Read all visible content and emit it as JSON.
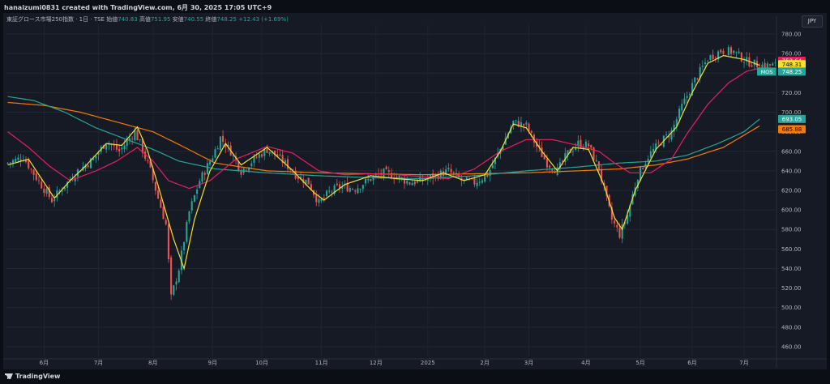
{
  "header": {
    "credit": "hanaizumi0831 created with TradingView.com, 6月 30, 2025 17:05 UTC+9"
  },
  "legend": {
    "symbol": "東証グロース市場250指数 · 1日 · TSE",
    "open_label": "始値",
    "open": "740.83",
    "high_label": "高値",
    "high": "751.95",
    "low_label": "安値",
    "low": "740.55",
    "close_label": "終値",
    "close": "748.25",
    "change": "+12.43 (+1.69%)"
  },
  "currency_button": "JPY",
  "watermark": "TradingView",
  "colors": {
    "background": "#161a25",
    "up": "#26a69a",
    "down": "#ef5350",
    "ma_yellow": "#f5e12f",
    "ma_pink": "#e91e63",
    "ma_teal": "#26a69a",
    "ma_orange": "#f57c00"
  },
  "price_tags": [
    {
      "value": "752.64",
      "bg": "#e91e63",
      "fg": "#ffffff"
    },
    {
      "value": "748.31",
      "bg": "#f5e12f",
      "fg": "#000000"
    },
    {
      "value": "748.25",
      "bg": "#26a69a",
      "fg": "#ffffff",
      "symbol": "MOS"
    },
    {
      "value": "693.05",
      "bg": "#26a69a",
      "fg": "#ffffff"
    },
    {
      "value": "685.88",
      "bg": "#f57c00",
      "fg": "#000000"
    }
  ],
  "chart_data": {
    "type": "candlestick",
    "ylim": [
      450,
      790
    ],
    "y_ticks": [
      460,
      480,
      500,
      520,
      540,
      560,
      580,
      600,
      620,
      640,
      660,
      680,
      700,
      720,
      740,
      760,
      780
    ],
    "x_labels": [
      "6月",
      "7月",
      "8月",
      "9月",
      "10月",
      "11月",
      "12月",
      "2025",
      "2月",
      "3月",
      "4月",
      "5月",
      "6月",
      "7月"
    ],
    "x_label_index": [
      14,
      35,
      56,
      79,
      98,
      121,
      142,
      162,
      184,
      201,
      223,
      244,
      264,
      284
    ],
    "x_max_index": 296,
    "anchors": [
      [
        0,
        648
      ],
      [
        6,
        654
      ],
      [
        11,
        633
      ],
      [
        17,
        610
      ],
      [
        21,
        622
      ],
      [
        27,
        640
      ],
      [
        33,
        652
      ],
      [
        38,
        670
      ],
      [
        43,
        660
      ],
      [
        49,
        680
      ],
      [
        51,
        668
      ],
      [
        55,
        640
      ],
      [
        58,
        612
      ],
      [
        61,
        585
      ],
      [
        63,
        510
      ],
      [
        66,
        540
      ],
      [
        70,
        598
      ],
      [
        74,
        630
      ],
      [
        79,
        655
      ],
      [
        82,
        674
      ],
      [
        86,
        660
      ],
      [
        90,
        640
      ],
      [
        96,
        654
      ],
      [
        100,
        662
      ],
      [
        104,
        655
      ],
      [
        108,
        645
      ],
      [
        112,
        634
      ],
      [
        116,
        628
      ],
      [
        120,
        607
      ],
      [
        124,
        618
      ],
      [
        128,
        624
      ],
      [
        134,
        622
      ],
      [
        140,
        632
      ],
      [
        145,
        638
      ],
      [
        150,
        634
      ],
      [
        155,
        628
      ],
      [
        160,
        630
      ],
      [
        166,
        636
      ],
      [
        170,
        640
      ],
      [
        175,
        630
      ],
      [
        180,
        628
      ],
      [
        185,
        636
      ],
      [
        190,
        662
      ],
      [
        195,
        690
      ],
      [
        200,
        686
      ],
      [
        204,
        665
      ],
      [
        208,
        648
      ],
      [
        212,
        640
      ],
      [
        216,
        658
      ],
      [
        220,
        668
      ],
      [
        224,
        666
      ],
      [
        228,
        642
      ],
      [
        231,
        610
      ],
      [
        233,
        590
      ],
      [
        236,
        575
      ],
      [
        239,
        595
      ],
      [
        243,
        635
      ],
      [
        247,
        655
      ],
      [
        252,
        670
      ],
      [
        256,
        680
      ],
      [
        260,
        706
      ],
      [
        265,
        733
      ],
      [
        270,
        755
      ],
      [
        275,
        763
      ],
      [
        280,
        762
      ],
      [
        285,
        752
      ],
      [
        290,
        748
      ]
    ],
    "ma_yellow": [
      [
        0,
        646
      ],
      [
        8,
        652
      ],
      [
        14,
        628
      ],
      [
        18,
        612
      ],
      [
        24,
        630
      ],
      [
        30,
        645
      ],
      [
        38,
        668
      ],
      [
        44,
        666
      ],
      [
        50,
        685
      ],
      [
        54,
        660
      ],
      [
        58,
        625
      ],
      [
        64,
        570
      ],
      [
        68,
        540
      ],
      [
        72,
        590
      ],
      [
        78,
        640
      ],
      [
        84,
        668
      ],
      [
        90,
        646
      ],
      [
        100,
        664
      ],
      [
        110,
        640
      ],
      [
        118,
        618
      ],
      [
        122,
        610
      ],
      [
        130,
        626
      ],
      [
        140,
        635
      ],
      [
        150,
        632
      ],
      [
        160,
        630
      ],
      [
        168,
        638
      ],
      [
        176,
        630
      ],
      [
        184,
        636
      ],
      [
        190,
        660
      ],
      [
        195,
        688
      ],
      [
        200,
        684
      ],
      [
        206,
        660
      ],
      [
        212,
        640
      ],
      [
        218,
        664
      ],
      [
        224,
        662
      ],
      [
        230,
        625
      ],
      [
        234,
        592
      ],
      [
        237,
        580
      ],
      [
        242,
        620
      ],
      [
        250,
        662
      ],
      [
        258,
        685
      ],
      [
        264,
        720
      ],
      [
        270,
        750
      ],
      [
        276,
        758
      ],
      [
        284,
        754
      ],
      [
        290,
        748
      ]
    ],
    "ma_pink": [
      [
        0,
        680
      ],
      [
        8,
        664
      ],
      [
        16,
        645
      ],
      [
        24,
        630
      ],
      [
        34,
        640
      ],
      [
        42,
        650
      ],
      [
        50,
        664
      ],
      [
        56,
        650
      ],
      [
        62,
        630
      ],
      [
        70,
        622
      ],
      [
        78,
        630
      ],
      [
        88,
        652
      ],
      [
        100,
        665
      ],
      [
        110,
        658
      ],
      [
        120,
        640
      ],
      [
        130,
        636
      ],
      [
        140,
        637
      ],
      [
        150,
        636
      ],
      [
        160,
        634
      ],
      [
        170,
        632
      ],
      [
        180,
        642
      ],
      [
        190,
        660
      ],
      [
        200,
        672
      ],
      [
        210,
        672
      ],
      [
        220,
        666
      ],
      [
        228,
        660
      ],
      [
        234,
        648
      ],
      [
        240,
        638
      ],
      [
        248,
        638
      ],
      [
        256,
        652
      ],
      [
        262,
        678
      ],
      [
        270,
        708
      ],
      [
        278,
        730
      ],
      [
        285,
        742
      ],
      [
        290,
        745
      ]
    ],
    "ma_teal": [
      [
        0,
        716
      ],
      [
        10,
        712
      ],
      [
        22,
        700
      ],
      [
        34,
        684
      ],
      [
        46,
        672
      ],
      [
        56,
        662
      ],
      [
        66,
        650
      ],
      [
        80,
        642
      ],
      [
        100,
        638
      ],
      [
        120,
        635
      ],
      [
        140,
        633
      ],
      [
        160,
        632
      ],
      [
        180,
        635
      ],
      [
        200,
        640
      ],
      [
        220,
        644
      ],
      [
        236,
        648
      ],
      [
        250,
        650
      ],
      [
        262,
        656
      ],
      [
        274,
        668
      ],
      [
        284,
        680
      ],
      [
        290,
        693
      ]
    ],
    "ma_orange": [
      [
        0,
        710
      ],
      [
        14,
        707
      ],
      [
        28,
        700
      ],
      [
        42,
        690
      ],
      [
        56,
        680
      ],
      [
        66,
        667
      ],
      [
        80,
        648
      ],
      [
        100,
        640
      ],
      [
        120,
        638
      ],
      [
        140,
        637
      ],
      [
        160,
        636
      ],
      [
        180,
        637
      ],
      [
        200,
        638
      ],
      [
        220,
        640
      ],
      [
        236,
        642
      ],
      [
        250,
        646
      ],
      [
        262,
        652
      ],
      [
        276,
        664
      ],
      [
        290,
        686
      ]
    ]
  }
}
